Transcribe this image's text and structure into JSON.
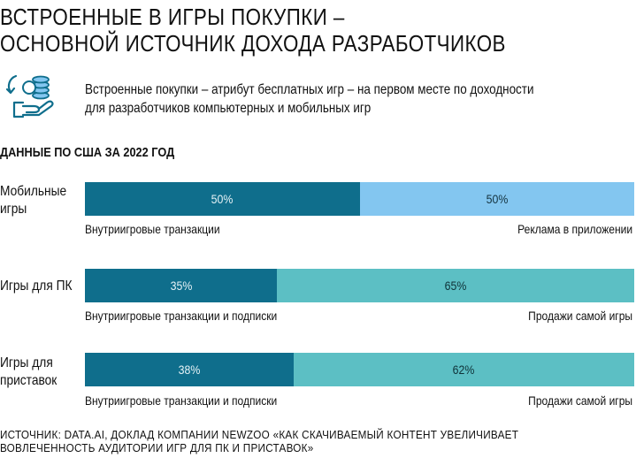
{
  "title_lines": [
    "Встроенные в игры покупки –",
    "основной источник дохода разработчиков"
  ],
  "subtitle_lines": [
    "Встроенные покупки – атрибут бесплатных игр – на первом месте по доходности",
    "для разработчиков компьютерных и мобильных игр"
  ],
  "section_label": "ДАННЫЕ ПО США ЗА 2022 ГОД",
  "icon": "hand-with-coins-icon",
  "colors": {
    "dark": "#0f6e8c",
    "light_blue": "#83c6f0",
    "teal": "#5cbfc4"
  },
  "chart_data": {
    "type": "bar",
    "orientation": "horizontal",
    "stacked": true,
    "unit": "%",
    "categories": [
      [
        "Мобильные",
        "игры"
      ],
      [
        "Игры для ПК"
      ],
      [
        "Игры для",
        "приставок"
      ]
    ],
    "bars": [
      {
        "segments": [
          {
            "label": "Внутриигровые транзакции",
            "value": 50,
            "display": "50%"
          },
          {
            "label": "Реклама в приложении",
            "value": 50,
            "display": "50%"
          }
        ]
      },
      {
        "segments": [
          {
            "label": "Внутриигровые транзакции и подписки",
            "value": 35,
            "display": "35%"
          },
          {
            "label": "Продажи самой игры",
            "value": 65,
            "display": "65%"
          }
        ]
      },
      {
        "segments": [
          {
            "label": "Внутриигровые транзакции и подписки",
            "value": 38,
            "display": "38%"
          },
          {
            "label": "Продажи самой игры",
            "value": 62,
            "display": "62%"
          }
        ]
      }
    ],
    "xlim": [
      0,
      100
    ]
  },
  "source_lines": [
    "Источник: data.ai, доклад компании Newzoo «Как скачиваемый контент увеличивает",
    "вовлеченность аудитории игр для ПК и приставок»"
  ]
}
